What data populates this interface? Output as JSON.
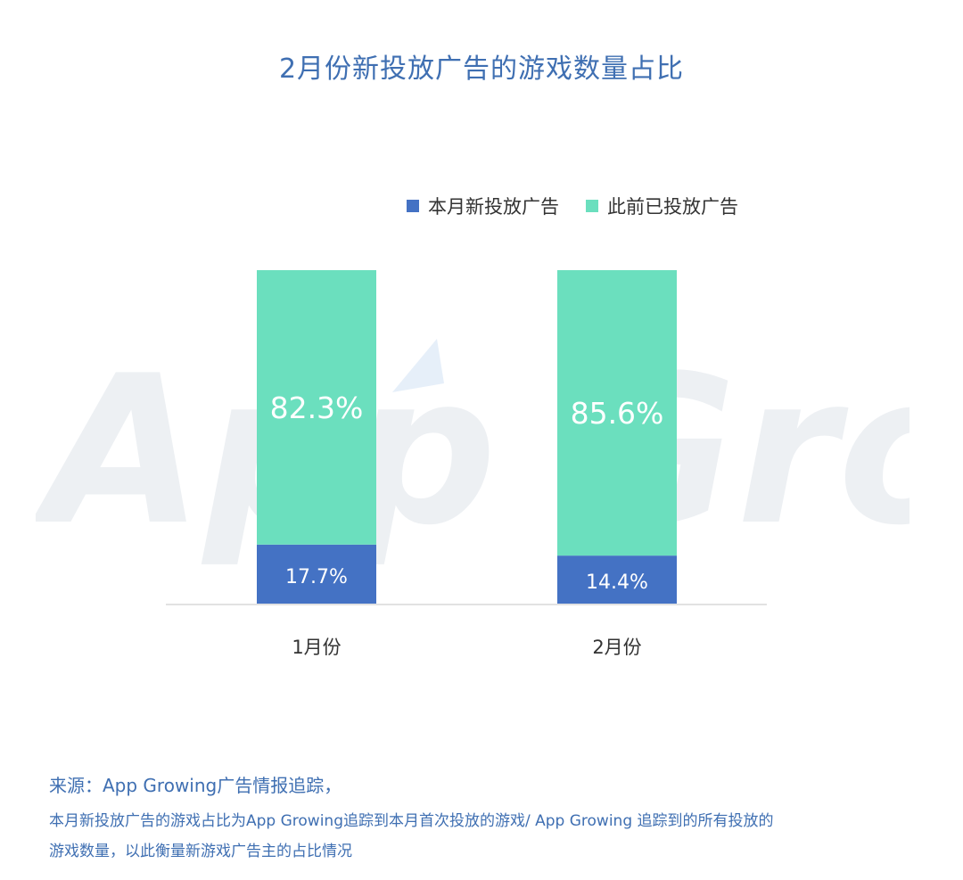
{
  "colors": {
    "new_ads": "#4472c4",
    "previous_ads": "#6bdfbe",
    "title": "#3f6fb2",
    "axis": "#d9d9d9"
  },
  "watermark_text": "App Growing",
  "chart_data": {
    "type": "bar",
    "stacked": true,
    "title": "2月份新投放广告的游戏数量占比",
    "categories": [
      "1月份",
      "2月份"
    ],
    "series": [
      {
        "name": "本月新投放广告",
        "values": [
          17.7,
          14.4
        ],
        "labels": [
          "17.7%",
          "14.4%"
        ]
      },
      {
        "name": "此前已投放广告",
        "values": [
          82.3,
          85.6
        ],
        "labels": [
          "82.3%",
          "85.6%"
        ]
      }
    ],
    "ylim": [
      0,
      100
    ],
    "xlabel": "",
    "ylabel": "",
    "legend": "top",
    "grid": false
  },
  "source": {
    "line1": "来源：App Growing广告情报追踪，",
    "line2": "本月新投放广告的游戏占比为App  Growing追踪到本月首次投放的游戏/ App Growing 追踪到的所有投放的",
    "line3": "游戏数量，以此衡量新游戏广告主的占比情况"
  }
}
